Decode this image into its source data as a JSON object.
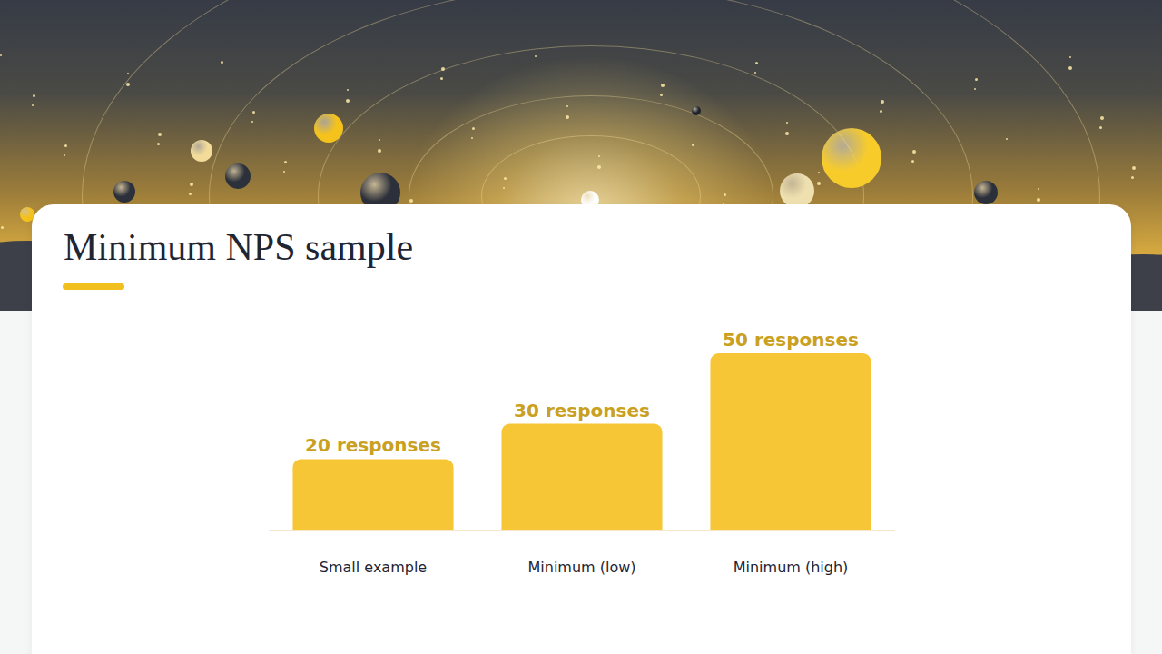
{
  "chart_data": {
    "type": "bar",
    "title": "Minimum NPS sample",
    "categories": [
      "Small example",
      "Minimum (low)",
      "Minimum (high)"
    ],
    "values": [
      20,
      30,
      50
    ],
    "value_labels": [
      "20 responses",
      "30 responses",
      "50 responses"
    ],
    "data_labels": true,
    "color": "#f6c636",
    "ylim": [
      0,
      50
    ],
    "grid": false,
    "tick_labels": "x"
  }
}
